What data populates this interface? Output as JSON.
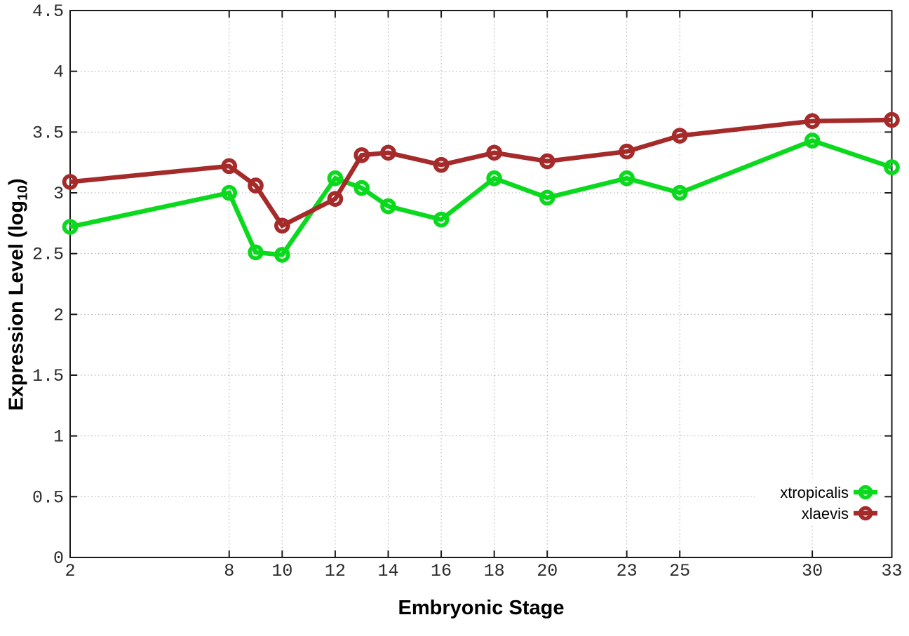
{
  "chart_data": {
    "type": "line",
    "title": "",
    "xlabel": "Embryonic Stage",
    "ylabel": "Expression Level (log10)",
    "ylabel_parts": {
      "main": "Expression Level (log",
      "sub": "10",
      "end": ")"
    },
    "xlim": [
      2,
      33
    ],
    "ylim": [
      0,
      4.5
    ],
    "x_ticks": [
      "2",
      "8",
      "10",
      "12",
      "14",
      "16",
      "18",
      "20",
      "23",
      "25",
      "30",
      "33"
    ],
    "y_ticks": [
      "0",
      "0.5",
      "1",
      "1.5",
      "2",
      "2.5",
      "3",
      "3.5",
      "4",
      "4.5"
    ],
    "grid": true,
    "legend_position": "bottom-right",
    "x": [
      2,
      8,
      9,
      10,
      12,
      13,
      14,
      16,
      18,
      20,
      23,
      25,
      30,
      33
    ],
    "series": [
      {
        "name": "xtropicalis",
        "color": "#0bd91e",
        "values": [
          2.72,
          3.0,
          2.51,
          2.49,
          3.12,
          3.04,
          2.89,
          2.78,
          3.12,
          2.96,
          3.12,
          3.0,
          3.43,
          3.21
        ]
      },
      {
        "name": "xlaevis",
        "color": "#a52a2a",
        "values": [
          3.09,
          3.22,
          3.06,
          2.73,
          2.95,
          3.31,
          3.33,
          3.23,
          3.33,
          3.26,
          3.34,
          3.47,
          3.59,
          3.6
        ]
      }
    ],
    "style": {
      "axis_color": "#1a1a1a",
      "grid_color": "#aaaaaa",
      "tick_label_color": "#2a2a2a",
      "legend_text_color": "#000000",
      "background": "#ffffff"
    }
  }
}
